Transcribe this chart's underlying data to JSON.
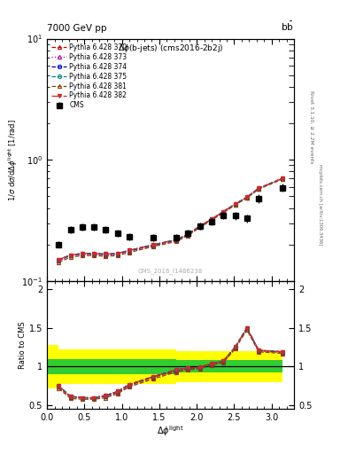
{
  "title_top": "7000 GeV pp",
  "title_right": "b$\\bar{b}$",
  "plot_title": "$\\Delta\\phi$(b-jets) (cms2016-2b2j)",
  "watermark": "CMS_2016_I1486238",
  "right_label_top": "Rivet 3.1.10, ≥ 2.2M events",
  "right_label_bottom": "mcplots.cern.ch [arXiv:1306.3436]",
  "xlabel": "$\\Delta\\phi^{\\rm light}$",
  "ylabel_main": "1/$\\sigma$ d$\\sigma$/d$\\Delta\\phi^{\\rm light}$ [1/rad]",
  "ylabel_ratio": "Ratio to CMS",
  "cms_x": [
    0.157,
    0.314,
    0.471,
    0.628,
    0.785,
    0.942,
    1.099,
    1.413,
    1.727,
    1.884,
    2.041,
    2.199,
    2.356,
    2.513,
    2.67,
    2.827,
    3.141
  ],
  "cms_y": [
    0.2,
    0.265,
    0.28,
    0.28,
    0.265,
    0.248,
    0.233,
    0.228,
    0.228,
    0.248,
    0.285,
    0.31,
    0.348,
    0.345,
    0.328,
    0.48,
    0.59
  ],
  "cms_yerr_low": [
    0.012,
    0.018,
    0.018,
    0.018,
    0.018,
    0.016,
    0.015,
    0.015,
    0.015,
    0.016,
    0.02,
    0.022,
    0.025,
    0.025,
    0.025,
    0.038,
    0.045
  ],
  "cms_yerr_high": [
    0.012,
    0.018,
    0.018,
    0.018,
    0.018,
    0.016,
    0.015,
    0.015,
    0.015,
    0.016,
    0.02,
    0.022,
    0.025,
    0.025,
    0.025,
    0.038,
    0.045
  ],
  "series": [
    {
      "label": "Pythia 6.428 370",
      "color": "#cc0000",
      "linestyle": "--",
      "marker": "^",
      "markerfacecolor": "none",
      "x": [
        0.157,
        0.314,
        0.471,
        0.628,
        0.785,
        0.942,
        1.099,
        1.413,
        1.727,
        1.884,
        2.041,
        2.199,
        2.356,
        2.513,
        2.67,
        2.827,
        3.141
      ],
      "y": [
        0.148,
        0.162,
        0.167,
        0.167,
        0.165,
        0.167,
        0.177,
        0.197,
        0.217,
        0.242,
        0.282,
        0.322,
        0.372,
        0.43,
        0.49,
        0.58,
        0.7
      ],
      "ratio": [
        0.74,
        0.61,
        0.6,
        0.6,
        0.62,
        0.67,
        0.76,
        0.86,
        0.95,
        0.98,
        0.99,
        1.04,
        1.07,
        1.25,
        1.49,
        1.21,
        1.19
      ]
    },
    {
      "label": "Pythia 6.428 373",
      "color": "#aa00aa",
      "linestyle": ":",
      "marker": "^",
      "markerfacecolor": "none",
      "x": [
        0.157,
        0.314,
        0.471,
        0.628,
        0.785,
        0.942,
        1.099,
        1.413,
        1.727,
        1.884,
        2.041,
        2.199,
        2.356,
        2.513,
        2.67,
        2.827,
        3.141
      ],
      "y": [
        0.148,
        0.162,
        0.165,
        0.165,
        0.163,
        0.165,
        0.175,
        0.195,
        0.215,
        0.24,
        0.28,
        0.32,
        0.368,
        0.428,
        0.488,
        0.578,
        0.698
      ],
      "ratio": [
        0.74,
        0.61,
        0.59,
        0.59,
        0.62,
        0.66,
        0.75,
        0.86,
        0.94,
        0.97,
        0.98,
        1.03,
        1.06,
        1.24,
        1.49,
        1.2,
        1.18
      ]
    },
    {
      "label": "Pythia 6.428 374",
      "color": "#0000cc",
      "linestyle": "--",
      "marker": "o",
      "markerfacecolor": "none",
      "x": [
        0.157,
        0.314,
        0.471,
        0.628,
        0.785,
        0.942,
        1.099,
        1.413,
        1.727,
        1.884,
        2.041,
        2.199,
        2.356,
        2.513,
        2.67,
        2.827,
        3.141
      ],
      "y": [
        0.15,
        0.164,
        0.169,
        0.169,
        0.167,
        0.169,
        0.179,
        0.199,
        0.219,
        0.244,
        0.284,
        0.324,
        0.374,
        0.432,
        0.492,
        0.582,
        0.702
      ],
      "ratio": [
        0.75,
        0.62,
        0.6,
        0.6,
        0.63,
        0.68,
        0.77,
        0.87,
        0.96,
        0.98,
        0.99,
        1.04,
        1.07,
        1.25,
        1.5,
        1.21,
        1.19
      ]
    },
    {
      "label": "Pythia 6.428 375",
      "color": "#008888",
      "linestyle": "--",
      "marker": "o",
      "markerfacecolor": "none",
      "x": [
        0.157,
        0.314,
        0.471,
        0.628,
        0.785,
        0.942,
        1.099,
        1.413,
        1.727,
        1.884,
        2.041,
        2.199,
        2.356,
        2.513,
        2.67,
        2.827,
        3.141
      ],
      "y": [
        0.15,
        0.164,
        0.169,
        0.169,
        0.167,
        0.169,
        0.179,
        0.199,
        0.219,
        0.244,
        0.284,
        0.324,
        0.374,
        0.432,
        0.492,
        0.582,
        0.702
      ],
      "ratio": [
        0.75,
        0.62,
        0.6,
        0.6,
        0.63,
        0.68,
        0.77,
        0.87,
        0.96,
        0.98,
        0.99,
        1.04,
        1.07,
        1.25,
        1.5,
        1.21,
        1.19
      ]
    },
    {
      "label": "Pythia 6.428 381",
      "color": "#884400",
      "linestyle": "--",
      "marker": "^",
      "markerfacecolor": "none",
      "x": [
        0.157,
        0.314,
        0.471,
        0.628,
        0.785,
        0.942,
        1.099,
        1.413,
        1.727,
        1.884,
        2.041,
        2.199,
        2.356,
        2.513,
        2.67,
        2.827,
        3.141
      ],
      "y": [
        0.143,
        0.157,
        0.162,
        0.162,
        0.16,
        0.162,
        0.172,
        0.192,
        0.212,
        0.237,
        0.277,
        0.317,
        0.366,
        0.424,
        0.484,
        0.572,
        0.692
      ],
      "ratio": [
        0.72,
        0.59,
        0.58,
        0.58,
        0.6,
        0.65,
        0.74,
        0.84,
        0.93,
        0.96,
        0.97,
        1.02,
        1.05,
        1.23,
        1.47,
        1.19,
        1.17
      ]
    },
    {
      "label": "Pythia 6.428 382",
      "color": "#dd2222",
      "linestyle": "-.",
      "marker": "v",
      "markerfacecolor": "#dd2222",
      "x": [
        0.157,
        0.314,
        0.471,
        0.628,
        0.785,
        0.942,
        1.099,
        1.413,
        1.727,
        1.884,
        2.041,
        2.199,
        2.356,
        2.513,
        2.67,
        2.827,
        3.141
      ],
      "y": [
        0.15,
        0.164,
        0.169,
        0.169,
        0.167,
        0.169,
        0.179,
        0.199,
        0.219,
        0.244,
        0.284,
        0.324,
        0.374,
        0.432,
        0.492,
        0.582,
        0.702
      ],
      "ratio": [
        0.75,
        0.62,
        0.6,
        0.6,
        0.63,
        0.68,
        0.77,
        0.87,
        0.96,
        0.98,
        0.99,
        1.04,
        1.07,
        1.25,
        1.5,
        1.21,
        1.19
      ]
    }
  ],
  "xlim": [
    0.0,
    3.3
  ],
  "main_ylim": [
    0.1,
    10.0
  ],
  "ratio_ylim": [
    0.46,
    2.1
  ],
  "ratio_yticks": [
    0.5,
    1.0,
    1.5,
    2.0
  ],
  "cms_band_edges": [
    0.0,
    0.157,
    0.471,
    0.785,
    1.256,
    1.727,
    2.199,
    2.67,
    3.141
  ],
  "cms_band_green_half": [
    0.1,
    0.1,
    0.1,
    0.1,
    0.1,
    0.08,
    0.08,
    0.08
  ],
  "cms_band_yellow_half": [
    0.28,
    0.22,
    0.22,
    0.22,
    0.22,
    0.2,
    0.2,
    0.2
  ]
}
